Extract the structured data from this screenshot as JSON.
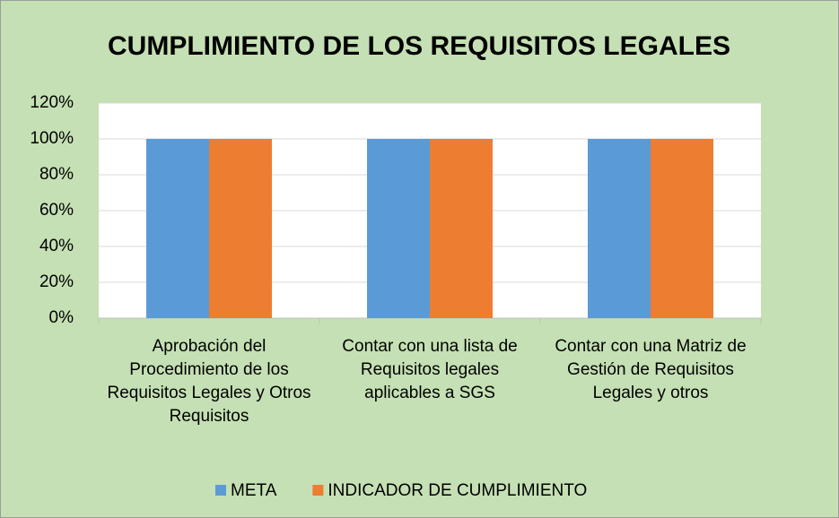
{
  "chart_data": {
    "type": "bar",
    "title": "CUMPLIMIENTO DE LOS REQUISITOS LEGALES",
    "categories": [
      "Aprobación del Procedimiento de los Requisitos Legales y Otros Requisitos",
      "Contar con una lista de Requisitos legales aplicables a SGS",
      "Contar con una Matriz de Gestión de Requisitos Legales y otros"
    ],
    "series": [
      {
        "name": "META",
        "color": "#5b9bd5",
        "values": [
          100,
          100,
          100
        ]
      },
      {
        "name": "INDICADOR DE CUMPLIMIENTO",
        "color": "#ed7d31",
        "values": [
          100,
          100,
          100
        ]
      }
    ],
    "ylim": [
      0,
      120
    ],
    "yticks": [
      {
        "value": 0,
        "label": "0%"
      },
      {
        "value": 20,
        "label": "20%"
      },
      {
        "value": 40,
        "label": "40%"
      },
      {
        "value": 60,
        "label": "60%"
      },
      {
        "value": 80,
        "label": "80%"
      },
      {
        "value": 100,
        "label": "100%"
      },
      {
        "value": 120,
        "label": "120%"
      }
    ],
    "grid": true
  }
}
